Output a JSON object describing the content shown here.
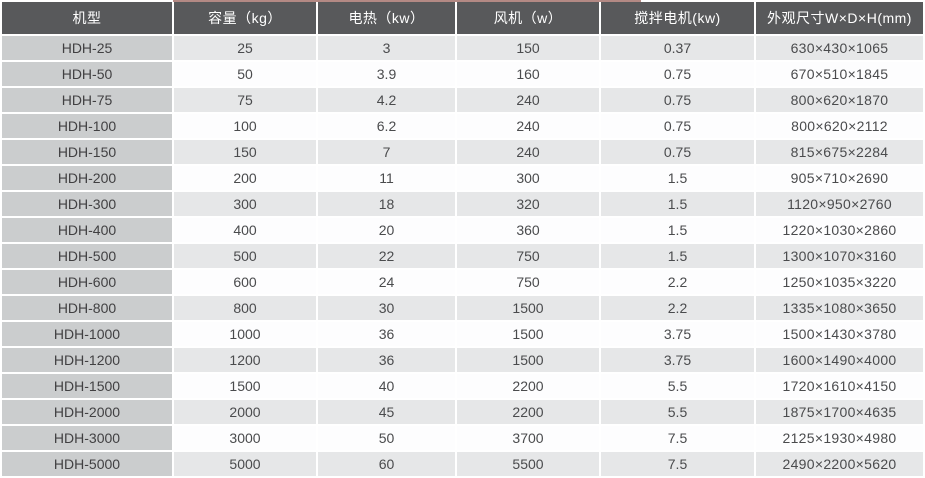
{
  "colors": {
    "header_bg": "#58595b",
    "header_text": "#ffffff",
    "model_col_bg": "#cbcdce",
    "model_text": "#414042",
    "row_alt_bg": "#e6e7e8",
    "row_bg": "#fdfdfe",
    "body_text": "#4a4b4d",
    "artifact_line": "#8a4a42"
  },
  "table": {
    "columns": [
      {
        "key": "model",
        "label": "机型"
      },
      {
        "key": "capacity-kg",
        "label": "容量（kg）"
      },
      {
        "key": "heating-kw",
        "label": "电热（kw）"
      },
      {
        "key": "fan-w",
        "label": "风机（w）"
      },
      {
        "key": "mixer-motor-kw",
        "label": "搅拌电机(kw)"
      },
      {
        "key": "dimensions",
        "label": "外观尺寸W×D×H(mm)"
      }
    ],
    "rows": [
      [
        "HDH-25",
        "25",
        "3",
        "150",
        "0.37",
        "630×430×1065"
      ],
      [
        "HDH-50",
        "50",
        "3.9",
        "160",
        "0.75",
        "670×510×1845"
      ],
      [
        "HDH-75",
        "75",
        "4.2",
        "240",
        "0.75",
        "800×620×1870"
      ],
      [
        "HDH-100",
        "100",
        "6.2",
        "240",
        "0.75",
        "800×620×2112"
      ],
      [
        "HDH-150",
        "150",
        "7",
        "240",
        "0.75",
        "815×675×2284"
      ],
      [
        "HDH-200",
        "200",
        "11",
        "300",
        "1.5",
        "905×710×2690"
      ],
      [
        "HDH-300",
        "300",
        "18",
        "320",
        "1.5",
        "1120×950×2760"
      ],
      [
        "HDH-400",
        "400",
        "20",
        "360",
        "1.5",
        "1220×1030×2860"
      ],
      [
        "HDH-500",
        "500",
        "22",
        "750",
        "1.5",
        "1300×1070×3160"
      ],
      [
        "HDH-600",
        "600",
        "24",
        "750",
        "2.2",
        "1250×1035×3220"
      ],
      [
        "HDH-800",
        "800",
        "30",
        "1500",
        "2.2",
        "1335×1080×3650"
      ],
      [
        "HDH-1000",
        "1000",
        "36",
        "1500",
        "3.75",
        "1500×1430×3780"
      ],
      [
        "HDH-1200",
        "1200",
        "36",
        "1500",
        "3.75",
        "1600×1490×4000"
      ],
      [
        "HDH-1500",
        "1500",
        "40",
        "2200",
        "5.5",
        "1720×1610×4150"
      ],
      [
        "HDH-2000",
        "2000",
        "45",
        "2200",
        "5.5",
        "1875×1700×4635"
      ],
      [
        "HDH-3000",
        "3000",
        "50",
        "3700",
        "7.5",
        "2125×1930×4980"
      ],
      [
        "HDH-5000",
        "5000",
        "60",
        "5500",
        "7.5",
        "2490×2200×5620"
      ]
    ]
  }
}
